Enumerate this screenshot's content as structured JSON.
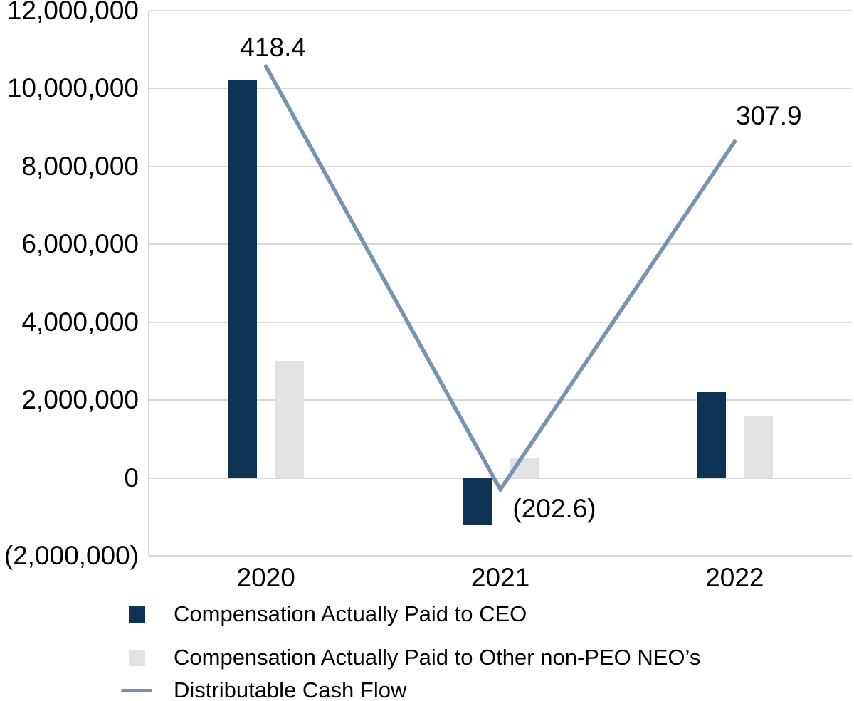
{
  "chart_data": {
    "type": "combo-bar-line",
    "categories": [
      "2020",
      "2021",
      "2022"
    ],
    "bar_series": [
      {
        "key": "ceo",
        "name": "Compensation Actually Paid to CEO",
        "values": [
          10200000,
          -1200000,
          2200000
        ],
        "color": "#0e3354"
      },
      {
        "key": "neo",
        "name": "Compensation Actually Paid to Other non-PEO NEO’s",
        "values": [
          3000000,
          500000,
          1600000
        ],
        "color": "#e1e2e4"
      }
    ],
    "line_series": {
      "key": "dcf",
      "name": "Distributable Cash Flow",
      "values": [
        418.4,
        -202.6,
        307.9
      ],
      "labels": [
        "418.4",
        "(202.6)",
        "307.9"
      ],
      "color": "#7a92b2",
      "axis": "secondary"
    },
    "y_axis": {
      "min": -2000000,
      "max": 12000000,
      "tick_step": 2000000,
      "tick_labels": [
        "12,000,000",
        "10,000,000",
        "8,000,000",
        "6,000,000",
        "4,000,000",
        "2,000,000",
        "0",
        "(2,000,000)"
      ]
    },
    "y2_axis": {
      "min": -300,
      "max": 500,
      "visible": false
    },
    "grid": true,
    "gridline_color": "#d9d9d9",
    "text_color": "#000000",
    "legend_position": "bottom-left"
  },
  "legend": {
    "items": [
      {
        "label": "Compensation Actually Paid to CEO",
        "marker": "square",
        "color": "#0e3354"
      },
      {
        "label": "Compensation Actually Paid to Other non-PEO NEO’s",
        "marker": "square",
        "color": "#e1e2e4"
      },
      {
        "label": "Distributable Cash Flow",
        "marker": "line",
        "color": "#7a92b2"
      }
    ]
  }
}
